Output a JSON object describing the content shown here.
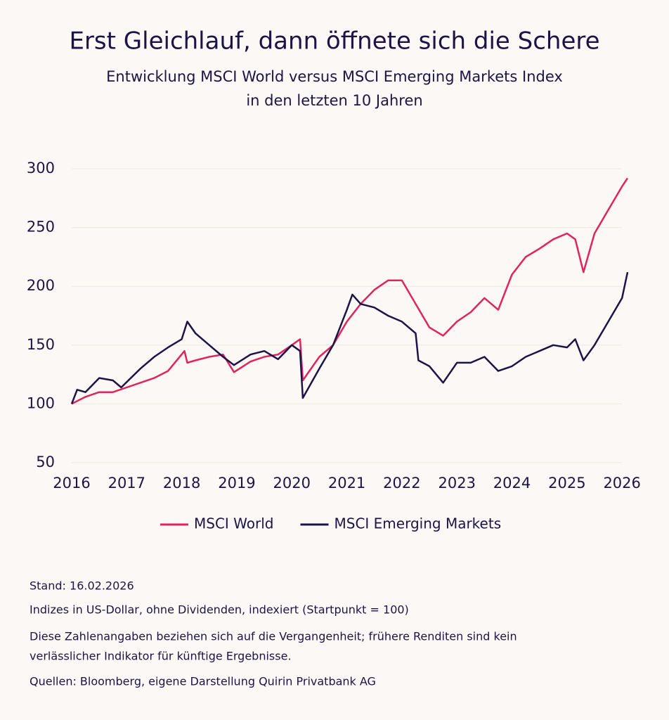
{
  "chart_data": {
    "type": "line",
    "title": "Erst Gleichlauf, dann öffnete sich die Schere",
    "subtitle": [
      "Entwicklung MSCI World versus MSCI Emerging Markets Index",
      "in den letzten 10 Jahren"
    ],
    "xlim": [
      2016,
      2026.1
    ],
    "xticks": [
      2016,
      2017,
      2018,
      2019,
      2020,
      2021,
      2022,
      2023,
      2024,
      2025,
      2026
    ],
    "ylim": [
      50,
      300
    ],
    "yticks": [
      50,
      100,
      150,
      200,
      250,
      300
    ],
    "grid": true,
    "series": [
      {
        "name": "MSCI World",
        "color": "#e0245e",
        "x": [
          2016,
          2016.25,
          2016.5,
          2016.75,
          2017,
          2017.25,
          2017.5,
          2017.75,
          2018.05,
          2018.1,
          2018.25,
          2018.5,
          2018.75,
          2018.95,
          2019.25,
          2019.5,
          2019.75,
          2020,
          2020.15,
          2020.2,
          2020.5,
          2020.75,
          2021,
          2021.25,
          2021.5,
          2021.75,
          2022,
          2022.25,
          2022.5,
          2022.75,
          2023,
          2023.25,
          2023.5,
          2023.75,
          2024,
          2024.25,
          2024.5,
          2024.75,
          2025,
          2025.15,
          2025.3,
          2025.5,
          2025.75,
          2026,
          2026.1
        ],
        "values": [
          100,
          106,
          110,
          110,
          114,
          118,
          122,
          128,
          145,
          135,
          137,
          140,
          142,
          127,
          136,
          140,
          142,
          150,
          155,
          120,
          140,
          150,
          170,
          185,
          197,
          205,
          205,
          185,
          165,
          158,
          170,
          178,
          190,
          180,
          210,
          225,
          232,
          240,
          245,
          240,
          212,
          245,
          265,
          285,
          292
        ]
      },
      {
        "name": "MSCI Emerging Markets",
        "color": "#1c1446",
        "x": [
          2016,
          2016.1,
          2016.25,
          2016.5,
          2016.75,
          2016.9,
          2017.25,
          2017.5,
          2017.75,
          2018,
          2018.1,
          2018.25,
          2018.5,
          2018.75,
          2018.95,
          2019.25,
          2019.5,
          2019.75,
          2020,
          2020.15,
          2020.2,
          2020.5,
          2020.75,
          2021,
          2021.1,
          2021.25,
          2021.5,
          2021.75,
          2022,
          2022.25,
          2022.3,
          2022.5,
          2022.75,
          2023,
          2023.25,
          2023.5,
          2023.75,
          2024,
          2024.25,
          2024.5,
          2024.75,
          2025,
          2025.15,
          2025.3,
          2025.5,
          2025.75,
          2026,
          2026.1
        ],
        "values": [
          100,
          112,
          110,
          122,
          120,
          114,
          130,
          140,
          148,
          155,
          170,
          160,
          150,
          140,
          133,
          142,
          145,
          138,
          150,
          145,
          105,
          130,
          150,
          180,
          193,
          185,
          182,
          175,
          170,
          160,
          137,
          132,
          118,
          135,
          135,
          140,
          128,
          132,
          140,
          145,
          150,
          148,
          155,
          137,
          150,
          170,
          190,
          212
        ]
      }
    ],
    "notes": [
      "Stand: 16.02.2026",
      "Indizes in US-Dollar, ohne Dividenden, indexiert (Startpunkt = 100)",
      "Diese Zahlenangaben beziehen sich auf die Vergangenheit; frühere Renditen sind kein",
      "verlässlicher Indikator für künftige Ergebnisse.",
      "Quellen: Bloomberg, eigene Darstellung Quirin Privatbank AG"
    ]
  }
}
